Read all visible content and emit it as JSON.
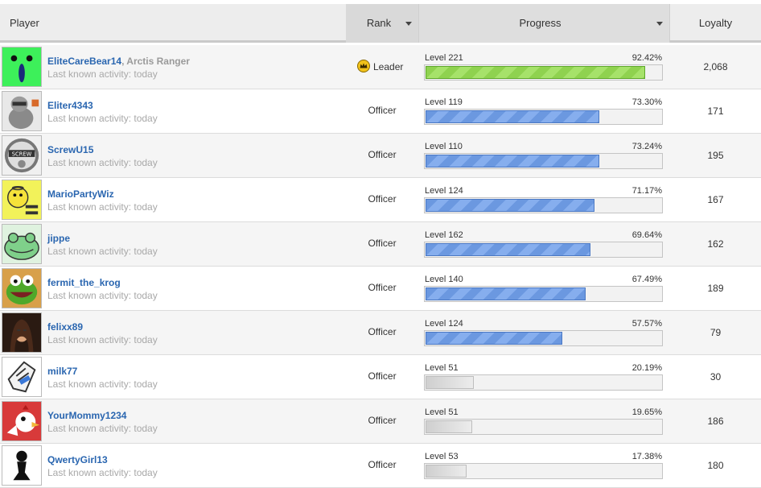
{
  "header": {
    "player": "Player",
    "rank": "Rank",
    "progress": "Progress",
    "loyalty": "Loyalty"
  },
  "colors": {
    "name_link": "#2a66b0",
    "leader_bar": "#8fd24f",
    "officer_bar": "#6b98e0",
    "low_bar": "#cfcfcf"
  },
  "rows": [
    {
      "name": "EliteCareBear14",
      "title": ", Arctis Ranger",
      "activity": "Last known activity: today",
      "rank": "Leader",
      "level": "Level 221",
      "percent": "92.42%",
      "fraction": 0.9242,
      "bar": "green",
      "loyalty": "2,068",
      "avatar": "green-alien-icon"
    },
    {
      "name": "Eliter4343",
      "title": "",
      "activity": "Last known activity: today",
      "rank": "Officer",
      "level": "Level 119",
      "percent": "73.30%",
      "fraction": 0.733,
      "bar": "blue",
      "loyalty": "171",
      "avatar": "robot-gorilla-icon"
    },
    {
      "name": "ScrewU15",
      "title": "",
      "activity": "Last known activity: today",
      "rank": "Officer",
      "level": "Level 110",
      "percent": "73.24%",
      "fraction": 0.7324,
      "bar": "blue",
      "loyalty": "195",
      "avatar": "screw-badge-icon"
    },
    {
      "name": "MarioPartyWiz",
      "title": "",
      "activity": "Last known activity: today",
      "rank": "Officer",
      "level": "Level 124",
      "percent": "71.17%",
      "fraction": 0.7117,
      "bar": "blue",
      "loyalty": "167",
      "avatar": "yellow-bee-icon"
    },
    {
      "name": "jippe",
      "title": "",
      "activity": "Last known activity: today",
      "rank": "Officer",
      "level": "Level 162",
      "percent": "69.64%",
      "fraction": 0.6964,
      "bar": "blue",
      "loyalty": "162",
      "avatar": "green-frog-icon"
    },
    {
      "name": "fermit_the_krog",
      "title": "",
      "activity": "Last known activity: today",
      "rank": "Officer",
      "level": "Level 140",
      "percent": "67.49%",
      "fraction": 0.6749,
      "bar": "blue",
      "loyalty": "189",
      "avatar": "kermit-frog-icon"
    },
    {
      "name": "felixx89",
      "title": "",
      "activity": "Last known activity: today",
      "rank": "Officer",
      "level": "Level 124",
      "percent": "57.57%",
      "fraction": 0.5757,
      "bar": "blue",
      "loyalty": "79",
      "avatar": "portrait-woman-icon"
    },
    {
      "name": "milk77",
      "title": "",
      "activity": "Last known activity: today",
      "rank": "Officer",
      "level": "Level 51",
      "percent": "20.19%",
      "fraction": 0.2019,
      "bar": "gray",
      "loyalty": "30",
      "avatar": "waving-hand-icon"
    },
    {
      "name": "YourMommy1234",
      "title": "",
      "activity": "Last known activity: today",
      "rank": "Officer",
      "level": "Level 51",
      "percent": "19.65%",
      "fraction": 0.1965,
      "bar": "gray",
      "loyalty": "186",
      "avatar": "red-chicken-icon"
    },
    {
      "name": "QwertyGirl13",
      "title": "",
      "activity": "Last known activity: today",
      "rank": "Officer",
      "level": "Level 53",
      "percent": "17.38%",
      "fraction": 0.1738,
      "bar": "gray",
      "loyalty": "180",
      "avatar": "chess-pawn-icon"
    }
  ]
}
